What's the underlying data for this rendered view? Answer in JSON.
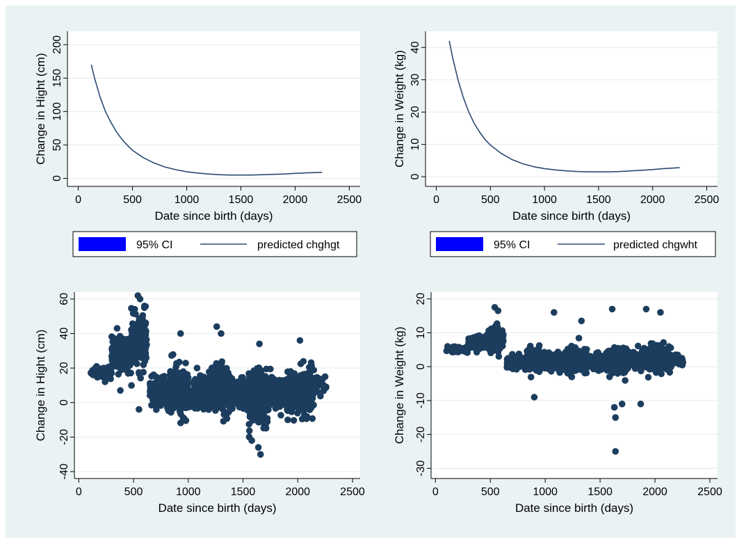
{
  "colors": {
    "background": "#eaf2f3",
    "plot_background": "#ffffff",
    "line": "#2b4a70",
    "marker": "#1c3d5e",
    "ci_fill": "#0000ff"
  },
  "chart_data": [
    {
      "type": "line",
      "xlabel": "Date since birth (days)",
      "ylabel": "Change in Hight (cm)",
      "xlim": [
        -100,
        2600
      ],
      "ylim": [
        -12,
        220
      ],
      "xticks": [
        0,
        500,
        1000,
        1500,
        2000,
        2500
      ],
      "yticks": [
        0,
        50,
        100,
        150,
        200
      ],
      "grid": true,
      "legend_position": "bottom",
      "legend": [
        {
          "label": "95% CI",
          "kind": "fill"
        },
        {
          "label": "predicted chghgt",
          "kind": "line"
        }
      ],
      "series": [
        {
          "name": "predicted chghgt",
          "x": [
            120,
            150,
            200,
            250,
            300,
            350,
            400,
            450,
            500,
            600,
            700,
            800,
            900,
            1000,
            1100,
            1200,
            1300,
            1400,
            1500,
            1600,
            1700,
            1800,
            1900,
            2000,
            2100,
            2250
          ],
          "y": [
            170,
            150,
            122,
            100,
            84,
            70,
            59,
            50,
            42,
            31,
            23,
            17,
            13,
            10,
            8,
            6.5,
            5.5,
            5,
            5,
            5,
            5.5,
            6,
            6.5,
            7.5,
            8.2,
            9
          ]
        }
      ]
    },
    {
      "type": "line",
      "xlabel": "Date since birth (days)",
      "ylabel": "Change in Weight (kg)",
      "xlim": [
        -100,
        2600
      ],
      "ylim": [
        -3,
        45
      ],
      "xticks": [
        0,
        500,
        1000,
        1500,
        2000,
        2500
      ],
      "yticks": [
        0,
        10,
        20,
        30,
        40
      ],
      "grid": true,
      "legend_position": "bottom",
      "legend": [
        {
          "label": "95% CI",
          "kind": "fill"
        },
        {
          "label": "predicted chgwht",
          "kind": "line"
        }
      ],
      "series": [
        {
          "name": "predicted chgwht",
          "x": [
            120,
            150,
            200,
            250,
            300,
            350,
            400,
            450,
            500,
            600,
            700,
            800,
            900,
            1000,
            1100,
            1200,
            1300,
            1400,
            1500,
            1600,
            1700,
            1800,
            1900,
            2000,
            2100,
            2250
          ],
          "y": [
            42,
            37,
            30,
            24.5,
            20,
            16.5,
            13.8,
            11.5,
            9.8,
            7.2,
            5.3,
            4,
            3.1,
            2.5,
            2.1,
            1.8,
            1.6,
            1.5,
            1.5,
            1.5,
            1.6,
            1.8,
            2.0,
            2.2,
            2.5,
            2.8
          ]
        }
      ]
    },
    {
      "type": "scatter",
      "xlabel": "Date since birth (days)",
      "ylabel": "Change in Hight (cm)",
      "xlim": [
        -40,
        2570
      ],
      "ylim": [
        -44,
        64
      ],
      "xticks": [
        0,
        500,
        1000,
        1500,
        2000,
        2500
      ],
      "yticks": [
        -40,
        -20,
        0,
        20,
        40,
        60
      ],
      "grid": true,
      "clusters": [
        {
          "x": [
            110,
            300
          ],
          "center": 18,
          "spread": 4,
          "n": 40
        },
        {
          "x": [
            300,
            480
          ],
          "center": 28,
          "spread": 8,
          "n": 140
        },
        {
          "x": [
            480,
            620
          ],
          "center": 35,
          "spread": 12,
          "n": 200
        },
        {
          "x": [
            650,
            830
          ],
          "center": 6,
          "spread": 7,
          "n": 130
        },
        {
          "x": [
            830,
            1000
          ],
          "center": 7,
          "spread": 11,
          "n": 220
        },
        {
          "x": [
            1000,
            1180
          ],
          "center": 5,
          "spread": 7,
          "n": 140
        },
        {
          "x": [
            1180,
            1380
          ],
          "center": 8,
          "spread": 11,
          "n": 220
        },
        {
          "x": [
            1380,
            1550
          ],
          "center": 5,
          "spread": 7,
          "n": 140
        },
        {
          "x": [
            1550,
            1750
          ],
          "center": 4,
          "spread": 12,
          "n": 240
        },
        {
          "x": [
            1750,
            1900
          ],
          "center": 5,
          "spread": 7,
          "n": 130
        },
        {
          "x": [
            1900,
            2150
          ],
          "center": 6,
          "spread": 11,
          "n": 240
        },
        {
          "x": [
            2150,
            2260
          ],
          "center": 10,
          "spread": 5,
          "n": 30
        }
      ],
      "points": [
        {
          "x": 540,
          "y": 62
        },
        {
          "x": 560,
          "y": 60
        },
        {
          "x": 600,
          "y": 56
        },
        {
          "x": 550,
          "y": -4
        },
        {
          "x": 1260,
          "y": 44
        },
        {
          "x": 1300,
          "y": 40
        },
        {
          "x": 1660,
          "y": -30
        },
        {
          "x": 1640,
          "y": -26
        },
        {
          "x": 1580,
          "y": -22
        },
        {
          "x": 2020,
          "y": 36
        },
        {
          "x": 930,
          "y": 40
        },
        {
          "x": 240,
          "y": 12
        },
        {
          "x": 380,
          "y": 7
        },
        {
          "x": 350,
          "y": 43
        },
        {
          "x": 2250,
          "y": 15
        },
        {
          "x": 130,
          "y": 16
        },
        {
          "x": 1650,
          "y": 34
        },
        {
          "x": 1080,
          "y": 20
        }
      ]
    },
    {
      "type": "scatter",
      "xlabel": "Date since birth (days)",
      "ylabel": "Change in Weight (kg)",
      "xlim": [
        -40,
        2570
      ],
      "ylim": [
        -33,
        22
      ],
      "xticks": [
        0,
        500,
        1000,
        1500,
        2000,
        2500
      ],
      "yticks": [
        -30,
        -20,
        -10,
        0,
        10,
        20
      ],
      "grid": true,
      "clusters": [
        {
          "x": [
            100,
            300
          ],
          "center": 5,
          "spread": 0.8,
          "n": 40
        },
        {
          "x": [
            300,
            480
          ],
          "center": 7,
          "spread": 1.5,
          "n": 140
        },
        {
          "x": [
            480,
            620
          ],
          "center": 8,
          "spread": 2.5,
          "n": 200
        },
        {
          "x": [
            650,
            830
          ],
          "center": 1.5,
          "spread": 1.5,
          "n": 130
        },
        {
          "x": [
            830,
            1000
          ],
          "center": 2,
          "spread": 2.5,
          "n": 220
        },
        {
          "x": [
            1000,
            1200
          ],
          "center": 1.5,
          "spread": 1.8,
          "n": 150
        },
        {
          "x": [
            1200,
            1380
          ],
          "center": 2,
          "spread": 3,
          "n": 220
        },
        {
          "x": [
            1380,
            1550
          ],
          "center": 1.5,
          "spread": 1.8,
          "n": 140
        },
        {
          "x": [
            1550,
            1750
          ],
          "center": 1.5,
          "spread": 3,
          "n": 240
        },
        {
          "x": [
            1750,
            1900
          ],
          "center": 2,
          "spread": 1.8,
          "n": 130
        },
        {
          "x": [
            1900,
            2150
          ],
          "center": 2.5,
          "spread": 3,
          "n": 240
        },
        {
          "x": [
            2150,
            2260
          ],
          "center": 2,
          "spread": 1.2,
          "n": 30
        }
      ],
      "points": [
        {
          "x": 540,
          "y": 17.5
        },
        {
          "x": 570,
          "y": 16.5
        },
        {
          "x": 1080,
          "y": 16
        },
        {
          "x": 1610,
          "y": 17
        },
        {
          "x": 1920,
          "y": 17
        },
        {
          "x": 2050,
          "y": 16
        },
        {
          "x": 1640,
          "y": -25
        },
        {
          "x": 1640,
          "y": -15
        },
        {
          "x": 1630,
          "y": -12
        },
        {
          "x": 1700,
          "y": -11
        },
        {
          "x": 1870,
          "y": -11
        },
        {
          "x": 900,
          "y": -9
        },
        {
          "x": 2250,
          "y": 0.5
        },
        {
          "x": 110,
          "y": 6
        },
        {
          "x": 1330,
          "y": 13.5
        }
      ]
    }
  ]
}
